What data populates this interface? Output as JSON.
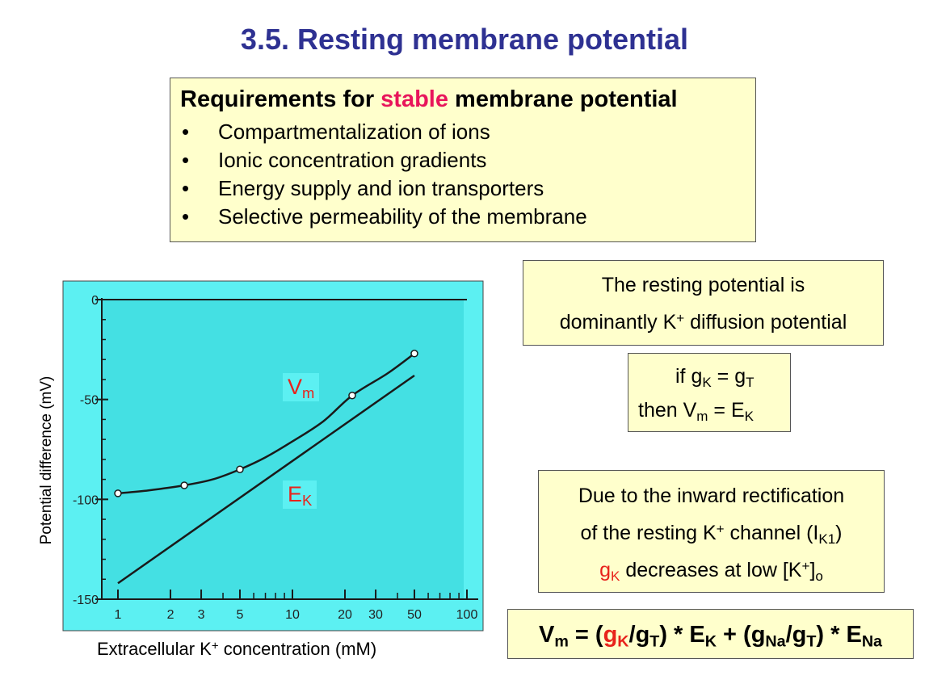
{
  "slide": {
    "title": "3.5. Resting membrane potential"
  },
  "requirements": {
    "heading_pre": "Requirements for ",
    "heading_highlight": "stable",
    "heading_post": " membrane potential",
    "bullet": "•",
    "items": [
      "Compartmentalization of ions",
      "Ionic concentration gradients",
      "Energy supply and ion transporters",
      "Selective permeability of the membrane"
    ]
  },
  "resting_note": {
    "line1": "The resting potential is",
    "line2_pre": "dominantly K",
    "line2_sup": "+",
    "line2_post": " diffusion potential"
  },
  "condition": {
    "if_word": "if  g",
    "gk_sub": "K",
    "eq": " = g",
    "gt_sub": "T",
    "then_word": "then  V",
    "vm_sub": "m",
    "eq2": " = E",
    "ek_sub": "K"
  },
  "rectification": {
    "line1": "Due to the inward rectification",
    "line2_pre": "of the resting K",
    "line2_sup": "+",
    "line2_mid": " channel (I",
    "line2_sub": "K1",
    "line2_post": ")",
    "line3_g": "g",
    "line3_gsub": "K",
    "line3_mid": " decreases at low [K",
    "line3_sup": "+",
    "line3_close": "]",
    "line3_sub": "o"
  },
  "equation": {
    "v": "V",
    "v_sub": "m",
    "eq_open": " = (",
    "gk": "g",
    "gk_sub": "K",
    "slash1": "/g",
    "gt_sub1": "T",
    "times1": ") * E",
    "ek_sub": "K",
    "plus": " + (g",
    "gna_sub": "Na",
    "slash2": "/g",
    "gt_sub2": "T",
    "times2": ") * E",
    "ena_sub": "Na"
  },
  "chart_data": {
    "type": "line",
    "xlabel_pre": "Extracellular K",
    "xlabel_sup": "+",
    "xlabel_post": " concentration (mM)",
    "ylabel": "Potential difference (mV)",
    "x_scale": "log",
    "xlim": [
      1,
      100
    ],
    "ylim": [
      -150,
      0
    ],
    "x_ticks": [
      1,
      2,
      3,
      5,
      10,
      20,
      30,
      50,
      100
    ],
    "x_tick_labels": [
      "1",
      "2",
      "3",
      "5",
      "10",
      "20",
      "30",
      "50",
      "100"
    ],
    "y_ticks": [
      0,
      -50,
      -100,
      -150
    ],
    "y_tick_labels": [
      "0",
      "-50",
      "-100",
      "-150"
    ],
    "series": [
      {
        "name": "Vm",
        "label_main": "V",
        "label_sub": "m",
        "smooth_curve": [
          {
            "x": 1,
            "y": -97
          },
          {
            "x": 1.5,
            "y": -95.5
          },
          {
            "x": 2.4,
            "y": -93
          },
          {
            "x": 3.5,
            "y": -90
          },
          {
            "x": 5,
            "y": -85
          },
          {
            "x": 7,
            "y": -79
          },
          {
            "x": 10,
            "y": -71
          },
          {
            "x": 15,
            "y": -61
          },
          {
            "x": 22,
            "y": -48
          },
          {
            "x": 35,
            "y": -37
          },
          {
            "x": 50,
            "y": -27
          }
        ],
        "markers": [
          {
            "x": 1,
            "y": -97
          },
          {
            "x": 2.4,
            "y": -93
          },
          {
            "x": 5,
            "y": -85
          },
          {
            "x": 22,
            "y": -48
          },
          {
            "x": 50,
            "y": -27
          }
        ]
      },
      {
        "name": "EK",
        "label_main": "E",
        "label_sub": "K",
        "points": [
          {
            "x": 1,
            "y": -142
          },
          {
            "x": 50,
            "y": -38
          }
        ]
      }
    ],
    "colors": {
      "plot_background": "#44e0e3",
      "frame_background": "#5cf0f2",
      "line": "#1a1a1a",
      "label": "#e8231c"
    },
    "grid": false
  }
}
